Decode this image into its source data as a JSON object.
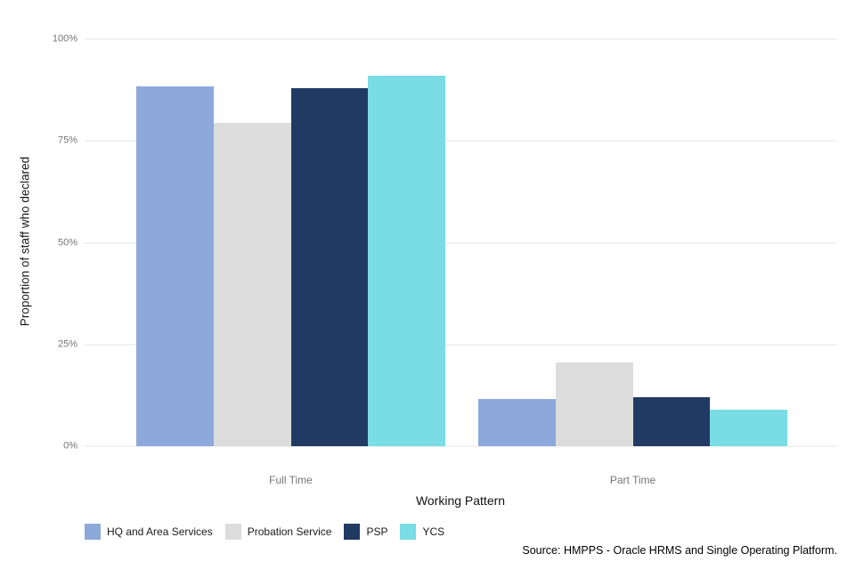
{
  "chart_data": {
    "type": "bar",
    "title": "",
    "xlabel": "Working Pattern",
    "ylabel": "Proportion of staff who declared",
    "categories": [
      "Full Time",
      "Part Time"
    ],
    "series": [
      {
        "name": "HQ and Area Services",
        "color": "#8DA9DC",
        "values": [
          88.5,
          11.5
        ]
      },
      {
        "name": "Probation Service",
        "color": "#DCDCDC",
        "values": [
          79.5,
          20.5
        ]
      },
      {
        "name": "PSP",
        "color": "#213A63",
        "values": [
          88.0,
          12.0
        ]
      },
      {
        "name": "YCS",
        "color": "#7ADCE4",
        "values": [
          91.0,
          9.0
        ]
      }
    ],
    "ylim": [
      0,
      100
    ],
    "yticks": [
      {
        "value": 0,
        "label": "0%"
      },
      {
        "value": 25,
        "label": "25%"
      },
      {
        "value": 50,
        "label": "50%"
      },
      {
        "value": 75,
        "label": "75%"
      },
      {
        "value": 100,
        "label": "100%"
      }
    ],
    "grid": true,
    "legend_position": "bottom-left",
    "value_unit": "percent"
  },
  "footer": {
    "source_note": "Source: HMPPS - Oracle HRMS and Single Operating Platform."
  },
  "colors": {
    "gridline": "#E6E6E6",
    "tick_label": "#757575",
    "category_label": "#757575",
    "axis_title": "#111111"
  }
}
